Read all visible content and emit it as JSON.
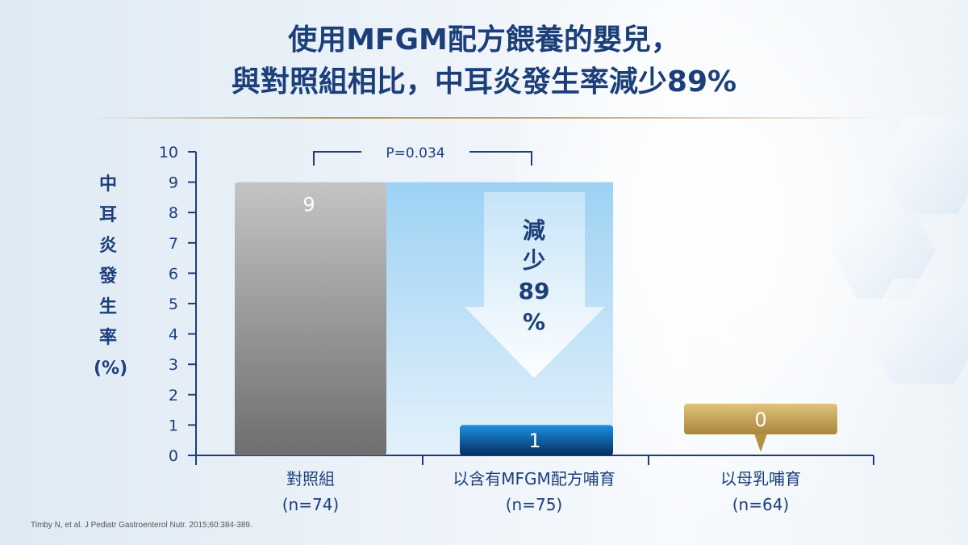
{
  "header": {
    "title_line1": "使用MFGM配方餵養的嬰兒，",
    "title_line2": "與對照組相比，中耳炎發生率減少89%"
  },
  "chart_data": {
    "type": "bar",
    "ylabel": "中耳炎發生率(%)",
    "ylim": [
      0,
      10
    ],
    "yticks": [
      0,
      1,
      2,
      3,
      4,
      5,
      6,
      7,
      8,
      9,
      10
    ],
    "categories": [
      {
        "label": "對照組",
        "n": "(n=74)"
      },
      {
        "label": "以含有MFGM配方哺育",
        "n": "(n=75)"
      },
      {
        "label": "以母乳哺育",
        "n": "(n=64)"
      }
    ],
    "values": [
      9,
      1,
      0
    ],
    "value_labels": [
      "9",
      "1",
      "0"
    ],
    "annotations": {
      "p_value": "P=0.034",
      "reduction_line1": "減",
      "reduction_line2": "少",
      "reduction_line3": "89",
      "reduction_line4": "%"
    },
    "colors": {
      "control": "#a9a9a9",
      "mfgm": "#0a67b0",
      "breastmilk": "#c9a755",
      "text": "#1c3f7a"
    }
  },
  "footer": {
    "citation": "Timby N, et al. J Pediatr Gastroenterol Nutr. 2015;60:384-389."
  }
}
